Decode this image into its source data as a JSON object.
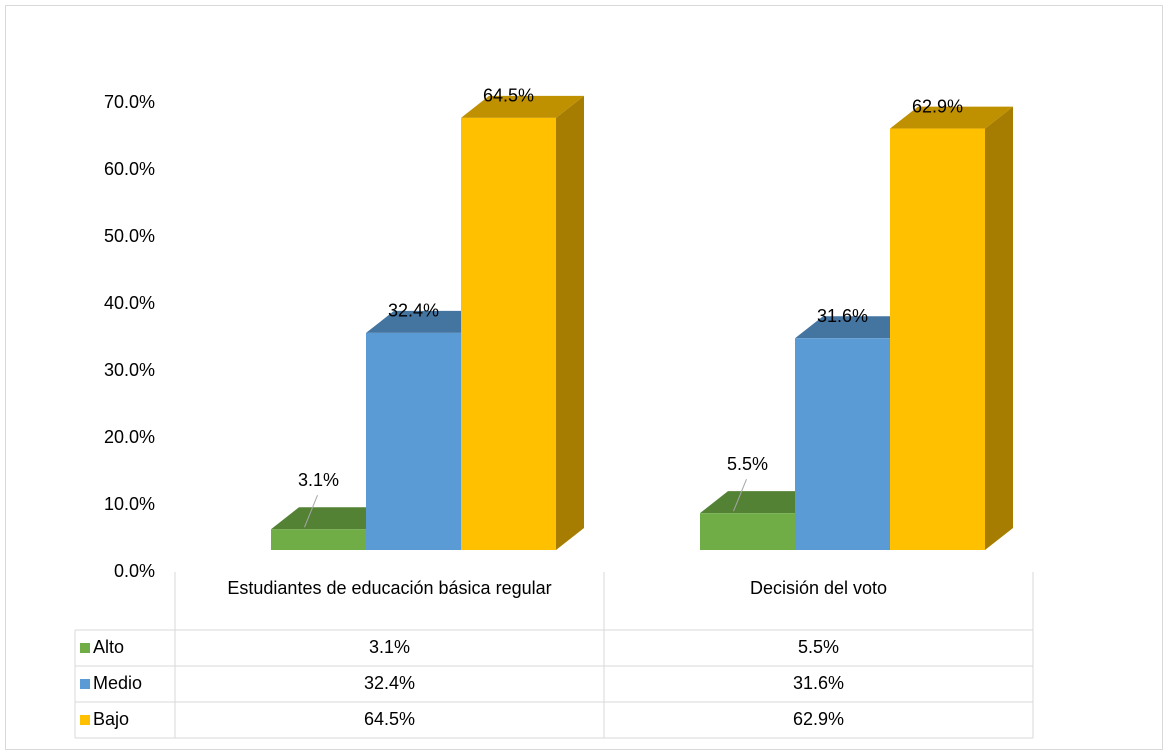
{
  "chart_data": {
    "type": "bar3d",
    "categories": [
      "Estudiantes de educación básica regular",
      "Decisión del voto"
    ],
    "series": [
      {
        "name": "Alto",
        "color": "#70ad47",
        "values": [
          3.1,
          5.5
        ],
        "value_labels": [
          "3.1%",
          "5.5%"
        ]
      },
      {
        "name": "Medio",
        "color": "#5b9bd5",
        "values": [
          32.4,
          31.6
        ],
        "value_labels": [
          "32.4%",
          "31.6%"
        ]
      },
      {
        "name": "Bajo",
        "color": "#ffc000",
        "values": [
          64.5,
          62.9
        ],
        "value_labels": [
          "64.5%",
          "62.9%"
        ]
      }
    ],
    "ylim": [
      0,
      70
    ],
    "yticks": [
      {
        "value": 0,
        "label": "0.0%"
      },
      {
        "value": 10,
        "label": "10.0%"
      },
      {
        "value": 20,
        "label": "20.0%"
      },
      {
        "value": 30,
        "label": "30.0%"
      },
      {
        "value": 40,
        "label": "40.0%"
      },
      {
        "value": 50,
        "label": "50.0%"
      },
      {
        "value": 60,
        "label": "60.0%"
      },
      {
        "value": 70,
        "label": "70.0%"
      }
    ],
    "data_table": true
  }
}
